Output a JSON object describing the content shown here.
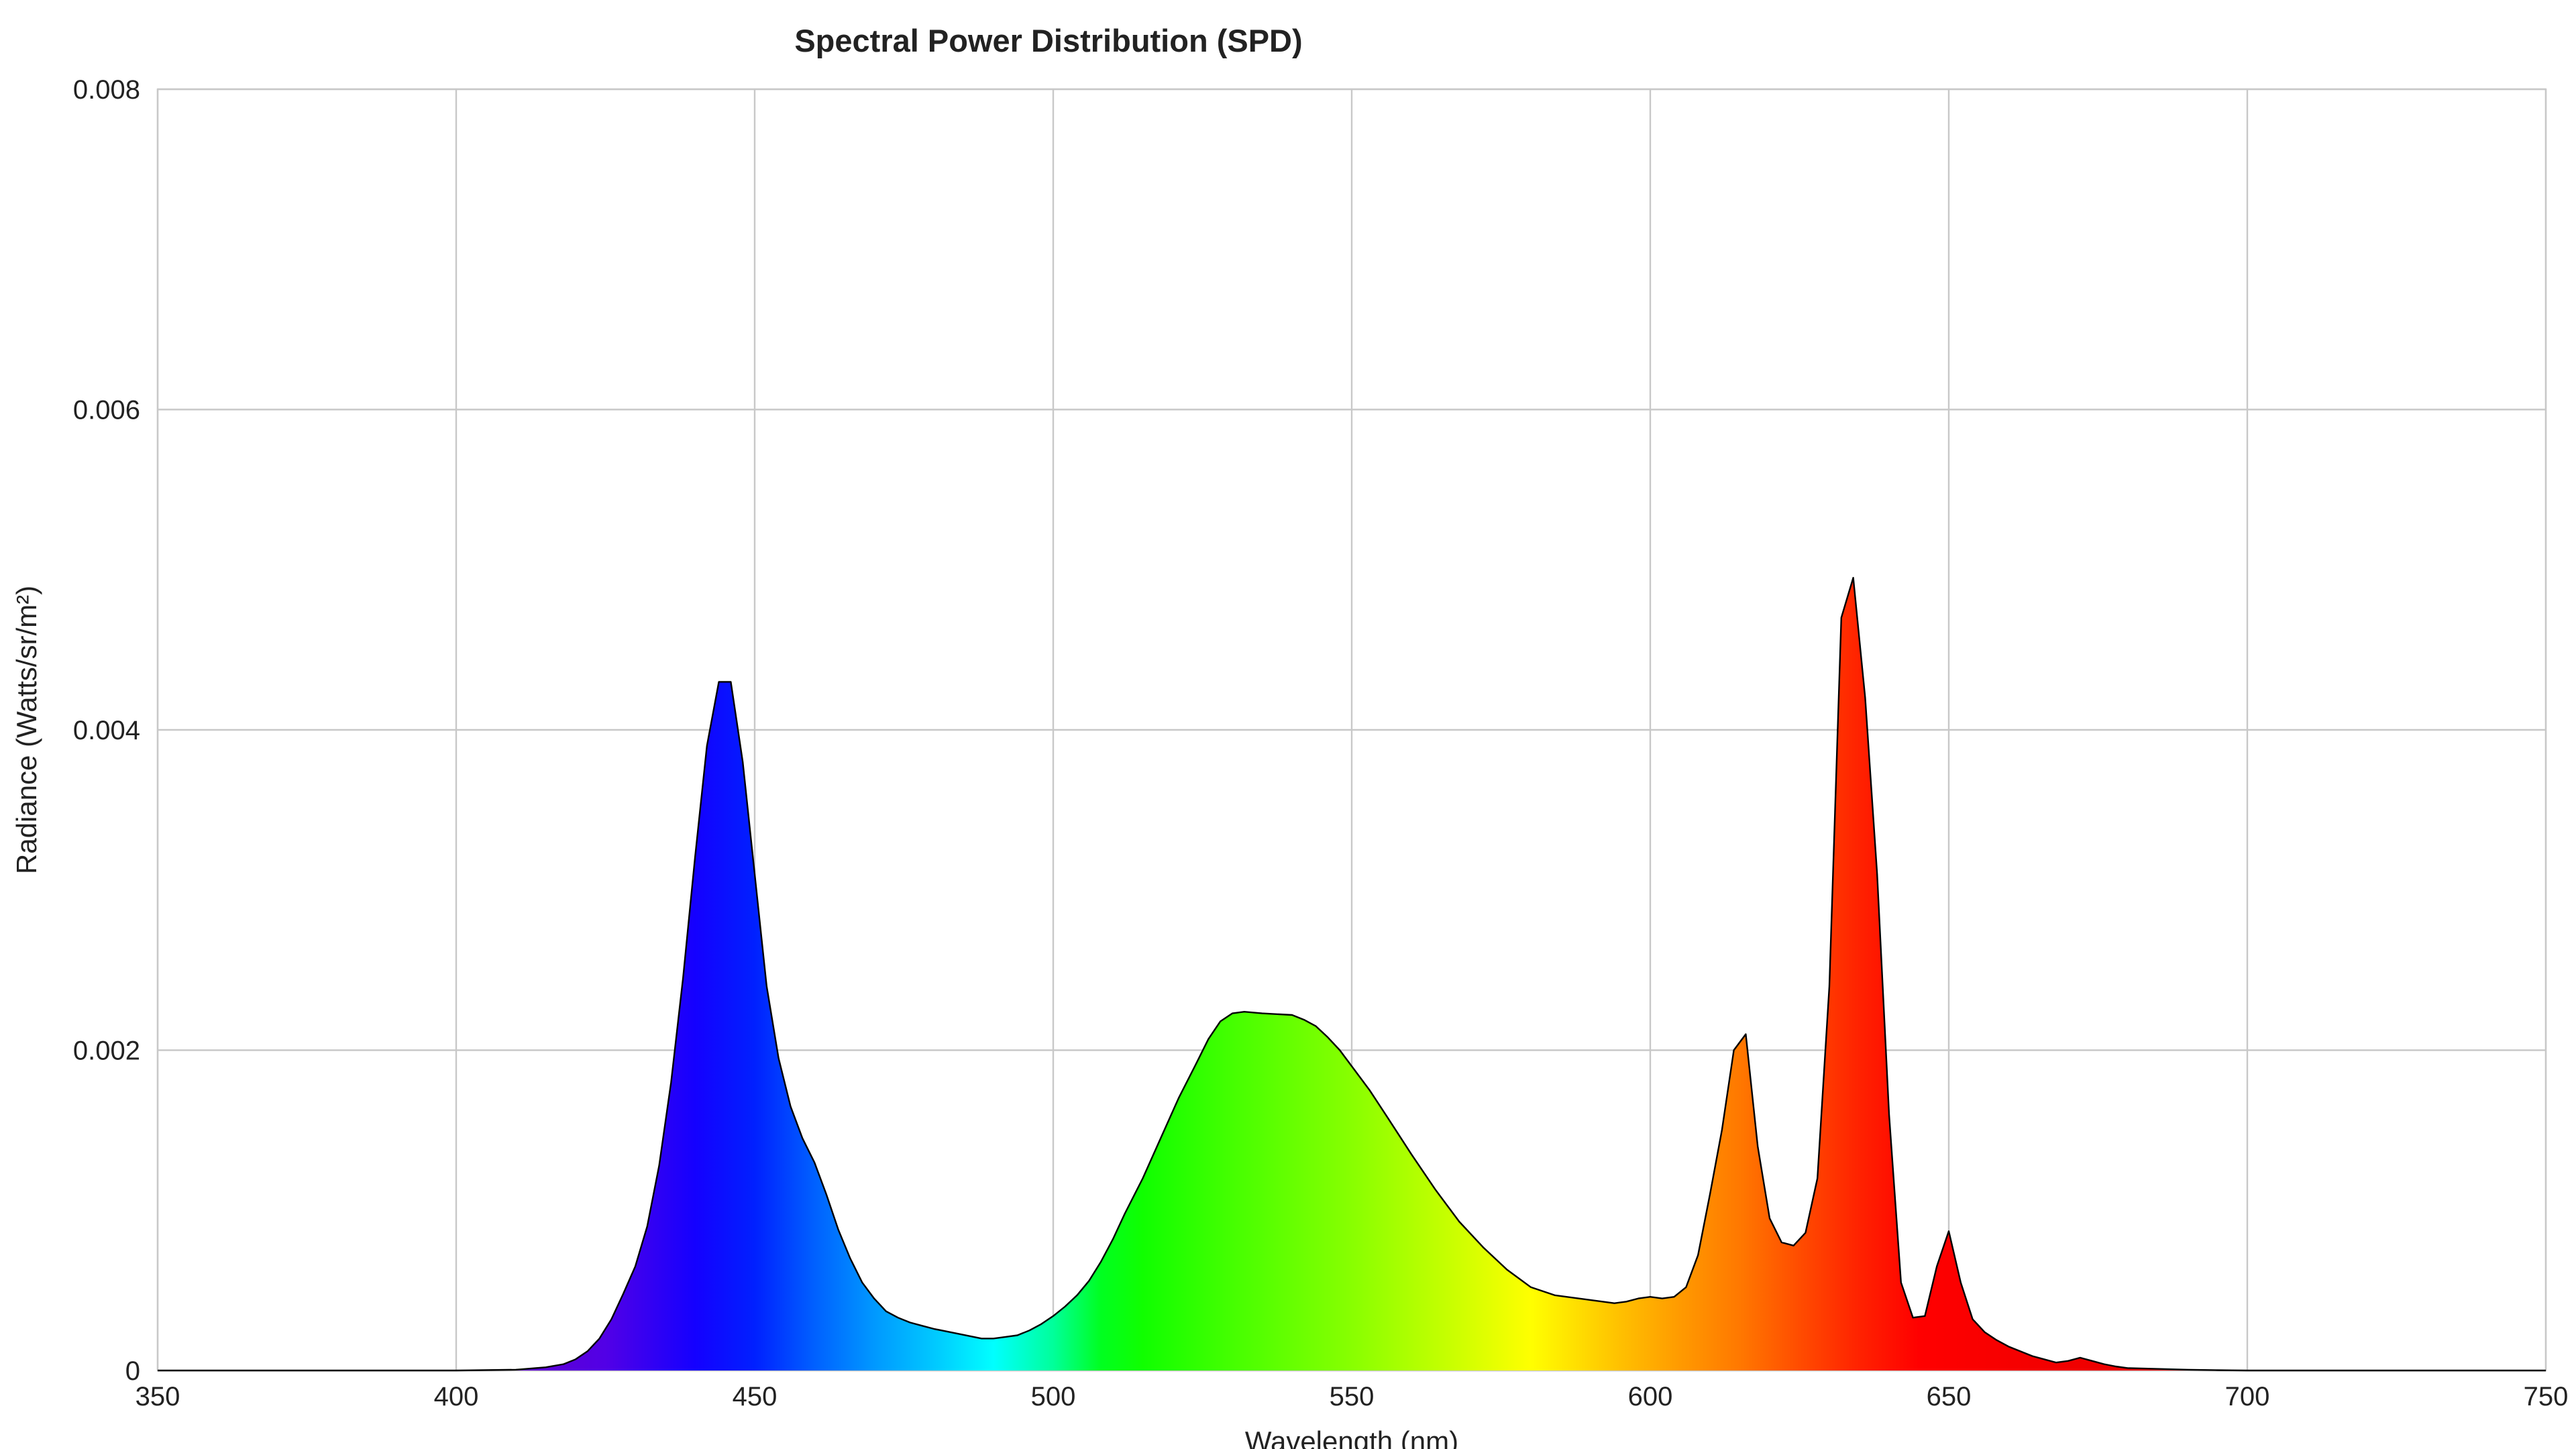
{
  "chart_data": {
    "type": "area",
    "title": "Spectral Power Distribution (SPD)",
    "xlabel": "Wavelength (nm)",
    "ylabel": "Radiance (Watts/sr/m²)",
    "xlim": [
      350,
      750
    ],
    "ylim": [
      0,
      0.008
    ],
    "x_ticks": [
      350,
      400,
      450,
      500,
      550,
      600,
      650,
      700,
      750
    ],
    "x_tick_labels": [
      "350",
      "400",
      "450",
      "500",
      "550",
      "600",
      "650",
      "700",
      "750"
    ],
    "y_ticks": [
      0,
      0.002,
      0.004,
      0.006,
      0.008
    ],
    "y_tick_labels": [
      "0",
      "0.002",
      "0.004",
      "0.006",
      "0.008"
    ],
    "grid": true,
    "fill": "wavelength-spectrum gradient",
    "series": [
      {
        "x": [
          350,
          400,
          410,
          415,
          418,
          420,
          422,
          424,
          426,
          428,
          430,
          432,
          434,
          436,
          438,
          440,
          442,
          444,
          446,
          448,
          450,
          452,
          454,
          456,
          458,
          460,
          462,
          464,
          466,
          468,
          470,
          472,
          474,
          476,
          478,
          480,
          484,
          488,
          490,
          492,
          494,
          496,
          498,
          500,
          502,
          504,
          506,
          508,
          510,
          512,
          515,
          518,
          521,
          524,
          526,
          528,
          530,
          532,
          535,
          540,
          542,
          544,
          546,
          548,
          550,
          553,
          556,
          560,
          564,
          568,
          572,
          576,
          580,
          584,
          588,
          592,
          594,
          596,
          598,
          600,
          602,
          604,
          606,
          608,
          610,
          612,
          614,
          616,
          618,
          620,
          622,
          624,
          626,
          628,
          630,
          632,
          634,
          636,
          638,
          640,
          642,
          644,
          646,
          648,
          650,
          652,
          654,
          656,
          658,
          660,
          664,
          668,
          670,
          672,
          674,
          676,
          678,
          680,
          685,
          690,
          695,
          700,
          750
        ],
        "y": [
          0.0,
          0.0,
          5e-06,
          2e-05,
          4e-05,
          7e-05,
          0.00012,
          0.0002,
          0.00032,
          0.00048,
          0.00065,
          0.0009,
          0.00128,
          0.0018,
          0.00245,
          0.0032,
          0.0039,
          0.0043,
          0.0043,
          0.0038,
          0.0031,
          0.0024,
          0.00195,
          0.00165,
          0.00145,
          0.0013,
          0.0011,
          0.00088,
          0.0007,
          0.00055,
          0.00045,
          0.00037,
          0.00033,
          0.0003,
          0.00028,
          0.00026,
          0.00023,
          0.0002,
          0.0002,
          0.00021,
          0.00022,
          0.00025,
          0.00029,
          0.00034,
          0.0004,
          0.00047,
          0.00056,
          0.00068,
          0.00082,
          0.00098,
          0.0012,
          0.00145,
          0.0017,
          0.00192,
          0.00207,
          0.00218,
          0.00223,
          0.00224,
          0.00223,
          0.00222,
          0.00219,
          0.00215,
          0.00208,
          0.002,
          0.0019,
          0.00175,
          0.00158,
          0.00135,
          0.00113,
          0.00093,
          0.00077,
          0.00063,
          0.00052,
          0.00047,
          0.00045,
          0.00043,
          0.00042,
          0.00043,
          0.00045,
          0.00046,
          0.00045,
          0.00046,
          0.00052,
          0.00072,
          0.0011,
          0.0015,
          0.002,
          0.0021,
          0.0014,
          0.00095,
          0.0008,
          0.00078,
          0.00086,
          0.0012,
          0.0024,
          0.0047,
          0.00495,
          0.0042,
          0.0031,
          0.0016,
          0.00055,
          0.00033,
          0.00034,
          0.00065,
          0.00087,
          0.00055,
          0.00032,
          0.00024,
          0.00019,
          0.00015,
          9e-05,
          5e-05,
          6e-05,
          8e-05,
          6e-05,
          4e-05,
          2.5e-05,
          1.5e-05,
          1e-05,
          5e-06,
          2e-06,
          0.0,
          0.0
        ]
      }
    ]
  }
}
